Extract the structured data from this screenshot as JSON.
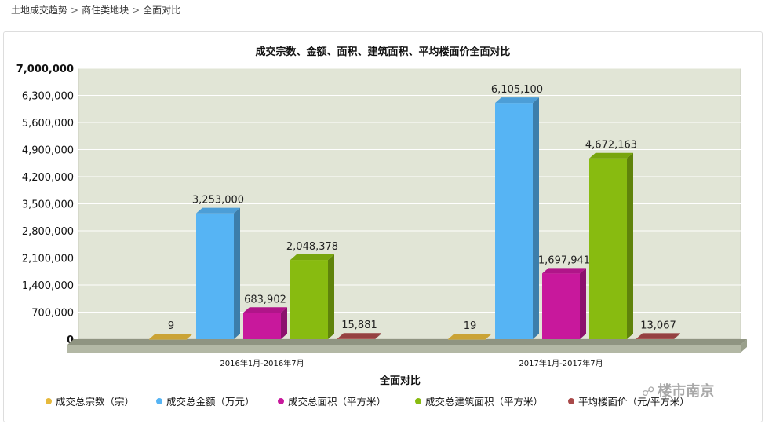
{
  "breadcrumb": {
    "items": [
      "土地成交趋势",
      "商住类地块",
      "全面对比"
    ],
    "separator": ">"
  },
  "colors": {
    "plot_bg": "#e1e5d6",
    "floor": "#b3b8a5",
    "series": [
      "#e6b93c",
      "#56b4f4",
      "#c8189c",
      "#88bb10",
      "#a94a4a"
    ]
  },
  "chart_data": {
    "type": "bar",
    "title": "成交宗数、金额、面积、建筑面积、平均楼面价全面对比",
    "xlabel": "全面对比",
    "ylabel": "",
    "categories": [
      "2016年1月-2016年7月",
      "2017年1月-2017年7月"
    ],
    "series": [
      {
        "name": "成交总宗数（宗）",
        "values": [
          9,
          19
        ],
        "labels": [
          "9",
          "19"
        ]
      },
      {
        "name": "成交总金额（万元）",
        "values": [
          3253000,
          6105100
        ],
        "labels": [
          "3,253,000",
          "6,105,100"
        ]
      },
      {
        "name": "成交总面积（平方米）",
        "values": [
          683902,
          1697941
        ],
        "labels": [
          "683,902",
          "1,697,941"
        ]
      },
      {
        "name": "成交总建筑面积（平方米）",
        "values": [
          2048378,
          4672163
        ],
        "labels": [
          "2,048,378",
          "4,672,163"
        ]
      },
      {
        "name": "平均楼面价（元/平方米）",
        "values": [
          15881,
          13067
        ],
        "labels": [
          "15,881",
          "13,067"
        ]
      }
    ],
    "ylim": [
      0,
      7000000
    ],
    "yticks": [
      0,
      700000,
      1400000,
      2100000,
      2800000,
      3500000,
      4200000,
      4900000,
      5600000,
      6300000,
      7000000
    ],
    "ytick_labels": [
      "0",
      "700,000",
      "1,400,000",
      "2,100,000",
      "2,800,000",
      "3,500,000",
      "4,200,000",
      "4,900,000",
      "5,600,000",
      "6,300,000",
      "7,000,000"
    ],
    "grid": true,
    "legend_position": "bottom"
  },
  "watermark": {
    "text": "楼市南京",
    "icon": "wechat-icon"
  }
}
